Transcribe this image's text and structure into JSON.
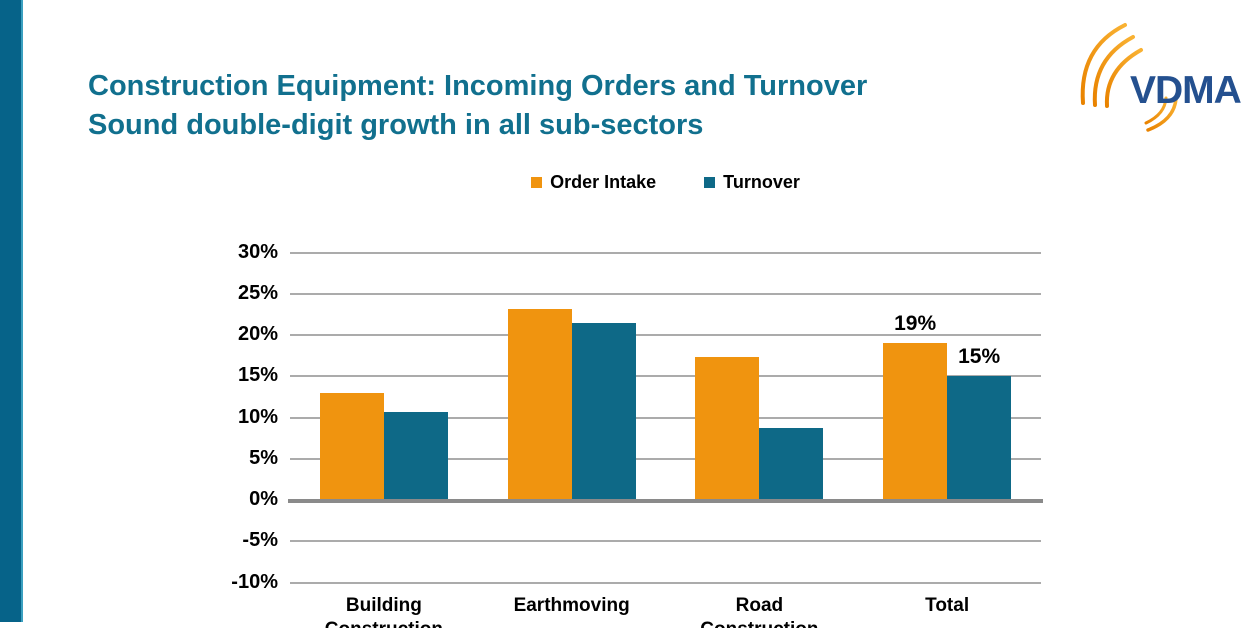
{
  "slide": {
    "title_line1": "Construction Equipment: Incoming Orders and Turnover",
    "title_line2": "Sound double-digit growth in all sub-sectors",
    "title_color": "#11708E"
  },
  "logo": {
    "text": "VDMA",
    "text_color": "#24508F",
    "arc_color_start": "#E98300",
    "arc_color_end": "#F9B233"
  },
  "accent_bar_color": "#066389",
  "chart_data": {
    "type": "bar",
    "title": "",
    "categories": [
      "Building Construction",
      "Earthmoving",
      "Road Construction",
      "Total"
    ],
    "series": [
      {
        "name": "Order Intake",
        "color": "#F0940F",
        "values": [
          13,
          23.2,
          17.3,
          19
        ],
        "value_labels": [
          "",
          "",
          "",
          "19%"
        ]
      },
      {
        "name": "Turnover",
        "color": "#0E6987",
        "values": [
          10.7,
          21.5,
          8.7,
          15
        ],
        "value_labels": [
          "",
          "",
          "",
          "15%"
        ]
      }
    ],
    "ylim": [
      -10,
      30
    ],
    "ytick_step": 5,
    "ytick_labels": [
      "30%",
      "25%",
      "20%",
      "15%",
      "10%",
      "5%",
      "0%",
      "-5%",
      "-10%"
    ],
    "grid": true,
    "gridline_color": "#ABABAB",
    "zeroline_color": "#8A8A8A",
    "legend_position": "top",
    "bar_label_notes": "only Total category shows data labels 19% and 15%"
  }
}
